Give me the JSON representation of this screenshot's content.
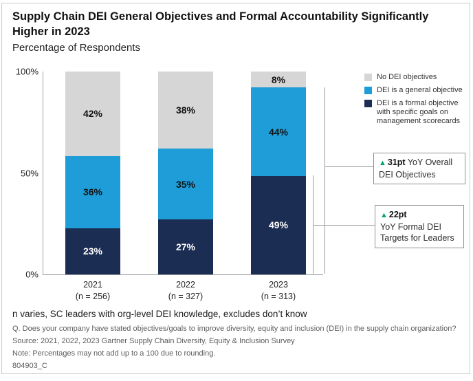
{
  "title": "Supply Chain DEI General Objectives and Formal Accountability Significantly Higher in 2023",
  "subtitle": "Percentage of Respondents",
  "colors": {
    "no_objectives_gray": "#D6D6D6",
    "general_objective_blue": "#1E9DD8",
    "formal_objective_navy": "#1C2D53",
    "delta_green": "#00A36B",
    "axis_gray": "#9C9C9C"
  },
  "chart_data": {
    "type": "bar",
    "stacked": true,
    "title": "Supply Chain DEI General Objectives and Formal Accountability Significantly Higher in 2023",
    "ylabel": "Percentage of Respondents",
    "ylim": [
      0,
      100
    ],
    "grid": false,
    "legend_position": "top-right",
    "categories": [
      "2021",
      "2022",
      "2023"
    ],
    "category_sublabels": [
      "(n = 256)",
      "(n = 327)",
      "(n = 313)"
    ],
    "y_ticks": [
      {
        "label": "100%",
        "value": 100
      },
      {
        "label": "50%",
        "value": 50
      },
      {
        "label": "0%",
        "value": 0
      }
    ],
    "value_suffix": "%",
    "series": [
      {
        "name": "DEI is a formal objective with specific goals on management scorecards",
        "color": "#1C2D53",
        "label_color": "#FFFFFF",
        "values": [
          23,
          27,
          49
        ]
      },
      {
        "name": "DEI is a general objective",
        "color": "#1E9DD8",
        "label_color": "#111111",
        "values": [
          36,
          35,
          44
        ]
      },
      {
        "name": "No DEI objectives",
        "color": "#D6D6D6",
        "label_color": "#111111",
        "values": [
          42,
          38,
          8
        ]
      }
    ]
  },
  "callouts": [
    {
      "delta": "31pt",
      "text": "YoY Overall DEI Objectives"
    },
    {
      "delta": "22pt",
      "text": "YoY Formal DEI Targets for Leaders"
    }
  ],
  "footer": {
    "n_note": "n varies, SC leaders with org-level DEI knowledge, excludes don’t know",
    "question": "Q. Does your company have stated objectives/goals to improve diversity, equity and inclusion (DEI) in the supply chain organization?",
    "source": "Source: 2021, 2022, 2023 Gartner Supply Chain Diversity, Equity & Inclusion Survey",
    "note": "Note: Percentages may not add up to a 100 due to rounding.",
    "doc_id": "804903_C"
  }
}
